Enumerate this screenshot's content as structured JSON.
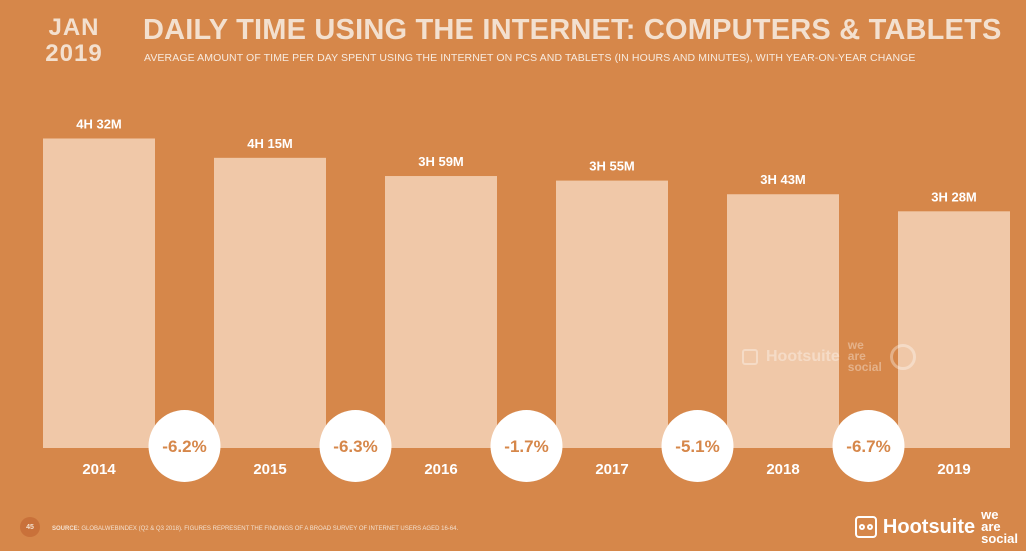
{
  "header": {
    "month": "JAN",
    "year": "2019",
    "title": "DAILY TIME USING THE INTERNET: COMPUTERS & TABLETS",
    "subtitle": "AVERAGE AMOUNT OF TIME PER DAY SPENT USING THE INTERNET ON PCS AND TABLETS (IN HOURS AND MINUTES), WITH YEAR-ON-YEAR CHANGE"
  },
  "colors": {
    "background": "#d6874a",
    "bar": "#f0c8a8",
    "change_circle": "#ffffff",
    "change_text": "#d6874a",
    "labels": "#ffffff"
  },
  "chart_data": {
    "type": "bar",
    "categories": [
      "2014",
      "2015",
      "2016",
      "2017",
      "2018",
      "2019"
    ],
    "values": [
      272,
      255,
      239,
      235,
      223,
      208
    ],
    "value_unit": "minutes",
    "data_labels": [
      "4H 32M",
      "4H 15M",
      "3H 59M",
      "3H 55M",
      "3H 43M",
      "3H 28M"
    ],
    "yoy_change": [
      "-6.2%",
      "-6.3%",
      "-1.7%",
      "-5.1%",
      "-6.7%"
    ],
    "title": "DAILY TIME USING THE INTERNET: COMPUTERS & TABLETS",
    "xlabel": "",
    "ylabel": "",
    "ylim": [
      0,
      290
    ],
    "grid": false,
    "legend": "none"
  },
  "watermark": {
    "brand": "Hootsuite",
    "partner": "we are social",
    "partner_lines": [
      "we",
      "are",
      "social"
    ]
  },
  "footer": {
    "page_number": "45",
    "source_label": "SOURCE:",
    "source_text": "GLOBALWEBINDEX (Q2 & Q3 2018). FIGURES REPRESENT THE FINDINGS OF A BROAD SURVEY OF INTERNET USERS AGED 16-64.",
    "brand": "Hootsuite",
    "partner_lines": [
      "we",
      "are",
      "social"
    ]
  }
}
